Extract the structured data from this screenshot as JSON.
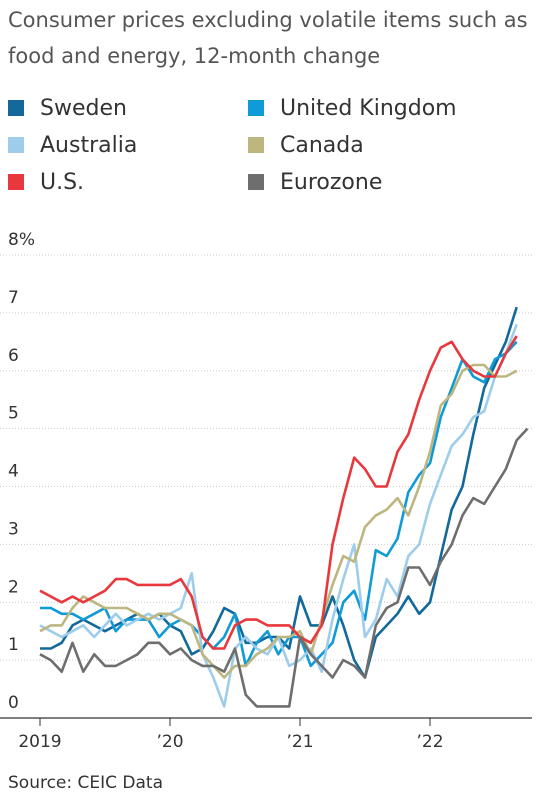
{
  "chart_data": {
    "type": "line",
    "title": "Consumer prices excluding volatile items such as food and energy, 12-month change",
    "source": "Source: CEIC Data",
    "categories": [
      "2019",
      null,
      null,
      null,
      null,
      null,
      null,
      null,
      null,
      null,
      null,
      null,
      "’20",
      null,
      null,
      null,
      null,
      null,
      null,
      null,
      null,
      null,
      null,
      null,
      "’21",
      null,
      null,
      null,
      null,
      null,
      null,
      null,
      null,
      null,
      null,
      null,
      "’22",
      null,
      null,
      null,
      null,
      null,
      null,
      null,
      null,
      null
    ],
    "ylim": [
      0,
      8
    ],
    "yticks": [
      0,
      1,
      2,
      3,
      4,
      5,
      6,
      7,
      {
        "value": 8,
        "label": "8%"
      }
    ],
    "grid": true,
    "series": [
      {
        "name": "Sweden",
        "color": "#12699a",
        "values": [
          1.2,
          1.2,
          1.3,
          1.6,
          1.7,
          1.6,
          1.5,
          1.6,
          1.7,
          1.8,
          1.7,
          1.8,
          1.6,
          1.5,
          1.1,
          1.2,
          1.5,
          1.9,
          1.8,
          1.3,
          1.3,
          1.4,
          1.4,
          1.2,
          2.1,
          1.6,
          1.6,
          2.1,
          1.6,
          1.0,
          0.7,
          1.4,
          1.6,
          1.8,
          2.1,
          1.8,
          2.0,
          2.8,
          3.6,
          4.0,
          4.9,
          5.7,
          6.1,
          6.5,
          7.1,
          null
        ]
      },
      {
        "name": "United Kingdom",
        "color": "#0f9ad8",
        "values": [
          1.9,
          1.9,
          1.8,
          1.8,
          1.7,
          1.8,
          1.9,
          1.5,
          1.7,
          1.7,
          1.7,
          1.4,
          1.6,
          1.7,
          1.6,
          1.4,
          1.2,
          1.4,
          1.8,
          0.9,
          1.3,
          1.5,
          1.1,
          1.4,
          1.4,
          0.9,
          1.1,
          1.3,
          2.0,
          2.2,
          1.7,
          2.9,
          2.8,
          3.1,
          3.9,
          4.2,
          4.4,
          5.2,
          5.7,
          6.2,
          5.9,
          5.8,
          6.2,
          6.3,
          6.5,
          null
        ]
      },
      {
        "name": "Australia",
        "color": "#9ecdec",
        "values": [
          1.6,
          1.5,
          1.4,
          1.5,
          1.6,
          1.4,
          1.6,
          1.8,
          1.6,
          1.7,
          1.8,
          1.7,
          1.8,
          1.9,
          2.5,
          1.1,
          0.7,
          0.2,
          1.2,
          1.4,
          1.2,
          1.1,
          1.4,
          0.9,
          1.0,
          1.2,
          0.8,
          1.7,
          2.4,
          3.0,
          1.4,
          1.7,
          2.4,
          2.1,
          2.8,
          3.0,
          3.7,
          4.2,
          4.7,
          4.9,
          5.2,
          5.3,
          5.9,
          6.3,
          6.8,
          null
        ]
      },
      {
        "name": "Canada",
        "color": "#bdb67f",
        "values": [
          1.5,
          1.6,
          1.6,
          1.9,
          2.1,
          2.0,
          1.9,
          1.9,
          1.9,
          1.8,
          1.7,
          1.8,
          1.8,
          1.7,
          1.6,
          1.1,
          0.9,
          0.7,
          0.9,
          0.9,
          1.1,
          1.2,
          1.4,
          1.4,
          1.5,
          1.1,
          1.7,
          2.3,
          2.8,
          2.7,
          3.3,
          3.5,
          3.6,
          3.8,
          3.5,
          4.0,
          4.6,
          5.4,
          5.6,
          6.0,
          6.1,
          6.1,
          5.9,
          5.9,
          6.0,
          null
        ]
      },
      {
        "name": "U.S.",
        "color": "#e8383d",
        "values": [
          2.2,
          2.1,
          2.0,
          2.1,
          2.0,
          2.1,
          2.2,
          2.4,
          2.4,
          2.3,
          2.3,
          2.3,
          2.3,
          2.4,
          2.1,
          1.4,
          1.2,
          1.2,
          1.6,
          1.7,
          1.7,
          1.6,
          1.6,
          1.6,
          1.4,
          1.3,
          1.6,
          3.0,
          3.8,
          4.5,
          4.3,
          4.0,
          4.0,
          4.6,
          4.9,
          5.5,
          6.0,
          6.4,
          6.5,
          6.2,
          6.0,
          5.9,
          5.9,
          6.3,
          6.6,
          null
        ]
      },
      {
        "name": "Eurozone",
        "color": "#6e6e6e",
        "values": [
          1.1,
          1.0,
          0.8,
          1.3,
          0.8,
          1.1,
          0.9,
          0.9,
          1.0,
          1.1,
          1.3,
          1.3,
          1.1,
          1.2,
          1.0,
          0.9,
          0.9,
          0.8,
          1.2,
          0.4,
          0.2,
          0.2,
          0.2,
          0.2,
          1.4,
          1.1,
          0.9,
          0.7,
          1.0,
          0.9,
          0.7,
          1.6,
          1.9,
          2.0,
          2.6,
          2.6,
          2.3,
          2.7,
          3.0,
          3.5,
          3.8,
          3.7,
          4.0,
          4.3,
          4.8,
          5.0
        ]
      }
    ]
  }
}
